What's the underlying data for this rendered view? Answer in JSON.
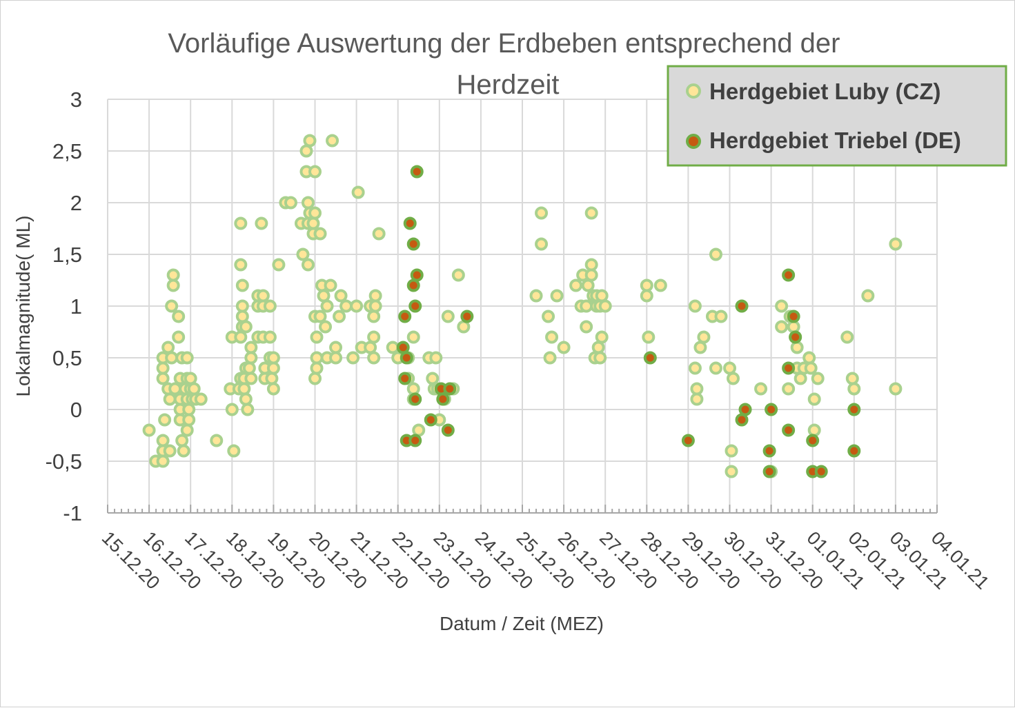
{
  "chart_data": {
    "type": "scatter",
    "title": "Vorläufige Auswertung der Erdbeben entsprechend der Herdzeit",
    "xlabel": "Datum / Zeit (MEZ)",
    "ylabel": "Lokalmagnitude( ML)",
    "ylim": [
      -1,
      3
    ],
    "yticks": [
      "-1",
      "-0,5",
      "0",
      "0,5",
      "1",
      "1,5",
      "2",
      "2,5",
      "3"
    ],
    "ytick_values": [
      -1,
      -0.5,
      0,
      0.5,
      1,
      1.5,
      2,
      2.5,
      3
    ],
    "xlim": [
      "2020-12-15",
      "2021-01-04"
    ],
    "xticks": [
      "15.12.20",
      "16.12.20",
      "17.12.20",
      "18.12.20",
      "19.12.20",
      "20.12.20",
      "21.12.20",
      "22.12.20",
      "23.12.20",
      "24.12.20",
      "25.12.20",
      "26.12.20",
      "27.12.20",
      "28.12.20",
      "29.12.20",
      "30.12.20",
      "31.12.20",
      "01.01.21",
      "02.01.21",
      "03.01.21",
      "04.01.21"
    ],
    "grid": true,
    "legend_position": "top-right",
    "series": [
      {
        "name": "Herdgebiet Luby (CZ)",
        "fill": "#ffe699",
        "stroke": "#a9d18e",
        "points": [
          [
            "2020-12-16 00:00",
            -0.2
          ],
          [
            "2020-12-16 03:50",
            -0.5
          ],
          [
            "2020-12-16 08:00",
            0.5
          ],
          [
            "2020-12-16 08:00",
            0.4
          ],
          [
            "2020-12-16 08:00",
            0.3
          ],
          [
            "2020-12-16 08:00",
            -0.3
          ],
          [
            "2020-12-16 08:00",
            -0.4
          ],
          [
            "2020-12-16 08:00",
            -0.5
          ],
          [
            "2020-12-16 09:00",
            -0.1
          ],
          [
            "2020-12-16 11:00",
            0.6
          ],
          [
            "2020-12-16 11:00",
            0.2
          ],
          [
            "2020-12-16 12:00",
            0.1
          ],
          [
            "2020-12-16 12:00",
            -0.4
          ],
          [
            "2020-12-16 13:00",
            0.5
          ],
          [
            "2020-12-16 13:00",
            1.0
          ],
          [
            "2020-12-16 14:00",
            1.3
          ],
          [
            "2020-12-16 14:00",
            1.2
          ],
          [
            "2020-12-16 15:00",
            0.2
          ],
          [
            "2020-12-16 17:00",
            0.9
          ],
          [
            "2020-12-16 17:00",
            0.7
          ],
          [
            "2020-12-16 18:00",
            0.3
          ],
          [
            "2020-12-16 18:00",
            0.0
          ],
          [
            "2020-12-16 18:00",
            -0.1
          ],
          [
            "2020-12-16 18:00",
            0.1
          ],
          [
            "2020-12-16 19:00",
            0.5
          ],
          [
            "2020-12-16 19:00",
            -0.3
          ],
          [
            "2020-12-16 20:00",
            -0.4
          ],
          [
            "2020-12-16 21:00",
            0.2
          ],
          [
            "2020-12-16 22:00",
            0.3
          ],
          [
            "2020-12-16 22:00",
            0.5
          ],
          [
            "2020-12-16 22:00",
            0.1
          ],
          [
            "2020-12-16 22:00",
            -0.2
          ],
          [
            "2020-12-16 23:00",
            0.0
          ],
          [
            "2020-12-16 23:00",
            -0.1
          ],
          [
            "2020-12-17 00:00",
            0.2
          ],
          [
            "2020-12-17 00:00",
            0.3
          ],
          [
            "2020-12-17 01:00",
            0.1
          ],
          [
            "2020-12-17 02:00",
            0.2
          ],
          [
            "2020-12-17 03:00",
            0.1
          ],
          [
            "2020-12-17 06:00",
            0.1
          ],
          [
            "2020-12-17 15:00",
            -0.3
          ],
          [
            "2020-12-17 23:00",
            0.2
          ],
          [
            "2020-12-18 00:00",
            0.0
          ],
          [
            "2020-12-18 00:00",
            0.7
          ],
          [
            "2020-12-18 01:00",
            -0.4
          ],
          [
            "2020-12-18 04:00",
            0.2
          ],
          [
            "2020-12-18 05:00",
            1.8
          ],
          [
            "2020-12-18 05:00",
            1.4
          ],
          [
            "2020-12-18 05:00",
            0.3
          ],
          [
            "2020-12-18 05:00",
            0.7
          ],
          [
            "2020-12-18 06:00",
            1.2
          ],
          [
            "2020-12-18 06:00",
            0.9
          ],
          [
            "2020-12-18 06:00",
            1.0
          ],
          [
            "2020-12-18 06:00",
            0.8
          ],
          [
            "2020-12-18 07:00",
            0.3
          ],
          [
            "2020-12-18 07:00",
            0.2
          ],
          [
            "2020-12-18 08:00",
            0.8
          ],
          [
            "2020-12-18 08:00",
            0.4
          ],
          [
            "2020-12-18 08:00",
            0.1
          ],
          [
            "2020-12-18 09:00",
            0.0
          ],
          [
            "2020-12-18 10:00",
            0.4
          ],
          [
            "2020-12-18 11:00",
            0.6
          ],
          [
            "2020-12-18 11:00",
            0.5
          ],
          [
            "2020-12-18 11:00",
            0.3
          ],
          [
            "2020-12-18 15:00",
            1.1
          ],
          [
            "2020-12-18 15:00",
            1.0
          ],
          [
            "2020-12-18 15:00",
            0.7
          ],
          [
            "2020-12-18 17:00",
            1.8
          ],
          [
            "2020-12-18 18:00",
            1.1
          ],
          [
            "2020-12-18 18:00",
            1.0
          ],
          [
            "2020-12-18 18:00",
            0.7
          ],
          [
            "2020-12-18 19:00",
            0.4
          ],
          [
            "2020-12-18 19:00",
            0.3
          ],
          [
            "2020-12-18 22:00",
            1.0
          ],
          [
            "2020-12-18 22:00",
            0.7
          ],
          [
            "2020-12-18 22:00",
            0.5
          ],
          [
            "2020-12-18 23:00",
            0.3
          ],
          [
            "2020-12-19 00:00",
            0.2
          ],
          [
            "2020-12-19 00:00",
            0.4
          ],
          [
            "2020-12-19 00:00",
            0.5
          ],
          [
            "2020-12-19 03:00",
            1.4
          ],
          [
            "2020-12-19 07:00",
            2.0
          ],
          [
            "2020-12-19 10:00",
            2.0
          ],
          [
            "2020-12-19 16:00",
            1.8
          ],
          [
            "2020-12-19 17:00",
            1.5
          ],
          [
            "2020-12-19 19:00",
            2.5
          ],
          [
            "2020-12-19 19:00",
            2.3
          ],
          [
            "2020-12-19 20:00",
            1.8
          ],
          [
            "2020-12-19 20:00",
            2.0
          ],
          [
            "2020-12-19 20:00",
            1.4
          ],
          [
            "2020-12-19 21:00",
            2.6
          ],
          [
            "2020-12-19 21:00",
            1.9
          ],
          [
            "2020-12-19 23:00",
            1.7
          ],
          [
            "2020-12-19 23:00",
            1.8
          ],
          [
            "2020-12-20 00:00",
            2.3
          ],
          [
            "2020-12-20 00:00",
            1.9
          ],
          [
            "2020-12-20 00:00",
            0.9
          ],
          [
            "2020-12-20 00:00",
            0.3
          ],
          [
            "2020-12-20 01:00",
            0.5
          ],
          [
            "2020-12-20 01:00",
            0.4
          ],
          [
            "2020-12-20 01:00",
            0.7
          ],
          [
            "2020-12-20 03:00",
            1.7
          ],
          [
            "2020-12-20 03:00",
            0.9
          ],
          [
            "2020-12-20 04:00",
            1.2
          ],
          [
            "2020-12-20 05:00",
            1.1
          ],
          [
            "2020-12-20 06:00",
            0.8
          ],
          [
            "2020-12-20 07:00",
            0.5
          ],
          [
            "2020-12-20 07:00",
            1.0
          ],
          [
            "2020-12-20 09:00",
            1.2
          ],
          [
            "2020-12-20 10:00",
            2.6
          ],
          [
            "2020-12-20 12:00",
            0.6
          ],
          [
            "2020-12-20 12:00",
            0.5
          ],
          [
            "2020-12-20 14:00",
            0.9
          ],
          [
            "2020-12-20 15:00",
            1.1
          ],
          [
            "2020-12-20 18:00",
            1.0
          ],
          [
            "2020-12-20 22:00",
            0.5
          ],
          [
            "2020-12-21 00:00",
            1.0
          ],
          [
            "2020-12-21 01:00",
            2.1
          ],
          [
            "2020-12-21 03:00",
            0.6
          ],
          [
            "2020-12-21 08:00",
            0.6
          ],
          [
            "2020-12-21 08:00",
            1.0
          ],
          [
            "2020-12-21 10:00",
            0.5
          ],
          [
            "2020-12-21 10:00",
            0.7
          ],
          [
            "2020-12-21 10:00",
            0.9
          ],
          [
            "2020-12-21 11:00",
            1.0
          ],
          [
            "2020-12-21 11:00",
            1.1
          ],
          [
            "2020-12-21 13:00",
            1.7
          ],
          [
            "2020-12-21 21:00",
            0.6
          ],
          [
            "2020-12-22 00:00",
            0.5
          ],
          [
            "2020-12-22 06:00",
            0.5
          ],
          [
            "2020-12-22 06:00",
            0.3
          ],
          [
            "2020-12-22 09:00",
            0.1
          ],
          [
            "2020-12-22 09:00",
            0.7
          ],
          [
            "2020-12-22 09:00",
            0.2
          ],
          [
            "2020-12-22 12:00",
            -0.2
          ],
          [
            "2020-12-22 18:00",
            0.5
          ],
          [
            "2020-12-22 20:00",
            0.3
          ],
          [
            "2020-12-22 21:00",
            0.2
          ],
          [
            "2020-12-22 22:00",
            0.5
          ],
          [
            "2020-12-22 23:00",
            0.2
          ],
          [
            "2020-12-23 00:00",
            -0.1
          ],
          [
            "2020-12-23 03:00",
            0.1
          ],
          [
            "2020-12-23 05:00",
            0.9
          ],
          [
            "2020-12-23 08:00",
            0.2
          ],
          [
            "2020-12-23 11:00",
            1.3
          ],
          [
            "2020-12-23 14:00",
            0.8
          ],
          [
            "2020-12-25 08:00",
            1.1
          ],
          [
            "2020-12-25 11:00",
            1.9
          ],
          [
            "2020-12-25 11:00",
            1.6
          ],
          [
            "2020-12-25 15:00",
            0.9
          ],
          [
            "2020-12-25 16:00",
            0.5
          ],
          [
            "2020-12-25 17:00",
            0.7
          ],
          [
            "2020-12-25 20:00",
            1.1
          ],
          [
            "2020-12-26 00:00",
            0.6
          ],
          [
            "2020-12-26 07:00",
            1.2
          ],
          [
            "2020-12-26 10:00",
            1.0
          ],
          [
            "2020-12-26 11:00",
            1.3
          ],
          [
            "2020-12-26 13:00",
            0.8
          ],
          [
            "2020-12-26 13:00",
            1.0
          ],
          [
            "2020-12-26 14:00",
            1.2
          ],
          [
            "2020-12-26 16:00",
            1.9
          ],
          [
            "2020-12-26 16:00",
            1.4
          ],
          [
            "2020-12-26 16:00",
            1.3
          ],
          [
            "2020-12-26 17:00",
            1.1
          ],
          [
            "2020-12-26 18:00",
            0.5
          ],
          [
            "2020-12-26 19:00",
            1.1
          ],
          [
            "2020-12-26 19:00",
            1.0
          ],
          [
            "2020-12-26 20:00",
            0.6
          ],
          [
            "2020-12-26 21:00",
            0.5
          ],
          [
            "2020-12-26 21:00",
            1.0
          ],
          [
            "2020-12-26 22:00",
            1.1
          ],
          [
            "2020-12-26 22:00",
            0.7
          ],
          [
            "2020-12-27 00:00",
            1.0
          ],
          [
            "2020-12-28 00:00",
            1.2
          ],
          [
            "2020-12-28 00:00",
            1.1
          ],
          [
            "2020-12-28 01:00",
            0.7
          ],
          [
            "2020-12-28 08:00",
            1.2
          ],
          [
            "2020-12-29 04:00",
            1.0
          ],
          [
            "2020-12-29 04:00",
            0.4
          ],
          [
            "2020-12-29 05:00",
            0.2
          ],
          [
            "2020-12-29 05:00",
            0.1
          ],
          [
            "2020-12-29 07:00",
            0.6
          ],
          [
            "2020-12-29 09:00",
            0.7
          ],
          [
            "2020-12-29 14:00",
            0.9
          ],
          [
            "2020-12-29 16:00",
            1.5
          ],
          [
            "2020-12-29 16:00",
            0.4
          ],
          [
            "2020-12-29 19:00",
            0.9
          ],
          [
            "2020-12-30 00:00",
            0.4
          ],
          [
            "2020-12-30 01:00",
            -0.4
          ],
          [
            "2020-12-30 01:00",
            -0.6
          ],
          [
            "2020-12-30 02:00",
            0.3
          ],
          [
            "2020-12-30 18:00",
            0.2
          ],
          [
            "2020-12-31 00:00",
            -0.6
          ],
          [
            "2020-12-31 06:00",
            1.0
          ],
          [
            "2020-12-31 06:00",
            0.8
          ],
          [
            "2020-12-31 10:00",
            0.2
          ],
          [
            "2020-12-31 11:00",
            0.9
          ],
          [
            "2020-12-31 13:00",
            0.8
          ],
          [
            "2020-12-31 14:00",
            0.7
          ],
          [
            "2020-12-31 15:00",
            0.6
          ],
          [
            "2020-12-31 15:00",
            0.4
          ],
          [
            "2020-12-31 17:00",
            0.3
          ],
          [
            "2020-12-31 19:00",
            0.4
          ],
          [
            "2020-12-31 22:00",
            0.5
          ],
          [
            "2020-12-31 23:00",
            0.4
          ],
          [
            "2021-01-01 01:00",
            -0.2
          ],
          [
            "2021-01-01 01:00",
            0.1
          ],
          [
            "2021-01-01 03:00",
            0.3
          ],
          [
            "2021-01-01 20:00",
            0.7
          ],
          [
            "2021-01-01 23:00",
            0.3
          ],
          [
            "2021-01-02 00:00",
            0.2
          ],
          [
            "2021-01-02 08:00",
            1.1
          ],
          [
            "2021-01-03 00:00",
            1.6
          ],
          [
            "2021-01-03 00:00",
            0.2
          ]
        ]
      },
      {
        "name": "Herdgebiet Triebel (DE)",
        "fill": "#c55a11",
        "stroke": "#70ad47",
        "points": [
          [
            "2020-12-22 03:00",
            0.6
          ],
          [
            "2020-12-22 04:00",
            0.3
          ],
          [
            "2020-12-22 04:00",
            0.9
          ],
          [
            "2020-12-22 05:00",
            0.5
          ],
          [
            "2020-12-22 05:00",
            -0.3
          ],
          [
            "2020-12-22 07:00",
            1.8
          ],
          [
            "2020-12-22 09:00",
            1.6
          ],
          [
            "2020-12-22 09:00",
            1.2
          ],
          [
            "2020-12-22 10:00",
            1.0
          ],
          [
            "2020-12-22 10:00",
            0.1
          ],
          [
            "2020-12-22 10:00",
            -0.3
          ],
          [
            "2020-12-22 11:00",
            1.3
          ],
          [
            "2020-12-22 11:00",
            2.3
          ],
          [
            "2020-12-22 19:00",
            -0.1
          ],
          [
            "2020-12-23 01:00",
            0.2
          ],
          [
            "2020-12-23 02:00",
            0.1
          ],
          [
            "2020-12-23 05:00",
            -0.2
          ],
          [
            "2020-12-23 06:00",
            0.2
          ],
          [
            "2020-12-23 16:00",
            0.9
          ],
          [
            "2020-12-28 02:00",
            0.5
          ],
          [
            "2020-12-29 00:00",
            -0.3
          ],
          [
            "2020-12-30 07:00",
            -0.1
          ],
          [
            "2020-12-30 07:00",
            1.0
          ],
          [
            "2020-12-30 09:00",
            0.0
          ],
          [
            "2020-12-30 23:00",
            -0.4
          ],
          [
            "2020-12-30 23:00",
            -0.6
          ],
          [
            "2020-12-31 00:00",
            0.0
          ],
          [
            "2020-12-31 10:00",
            1.3
          ],
          [
            "2020-12-31 10:00",
            -0.2
          ],
          [
            "2020-12-31 10:00",
            0.4
          ],
          [
            "2020-12-31 13:00",
            0.9
          ],
          [
            "2020-12-31 14:00",
            0.7
          ],
          [
            "2021-01-01 00:00",
            -0.3
          ],
          [
            "2021-01-01 00:00",
            -0.6
          ],
          [
            "2021-01-01 05:00",
            -0.6
          ],
          [
            "2021-01-02 00:00",
            0.0
          ],
          [
            "2021-01-02 00:00",
            -0.4
          ]
        ]
      }
    ]
  }
}
